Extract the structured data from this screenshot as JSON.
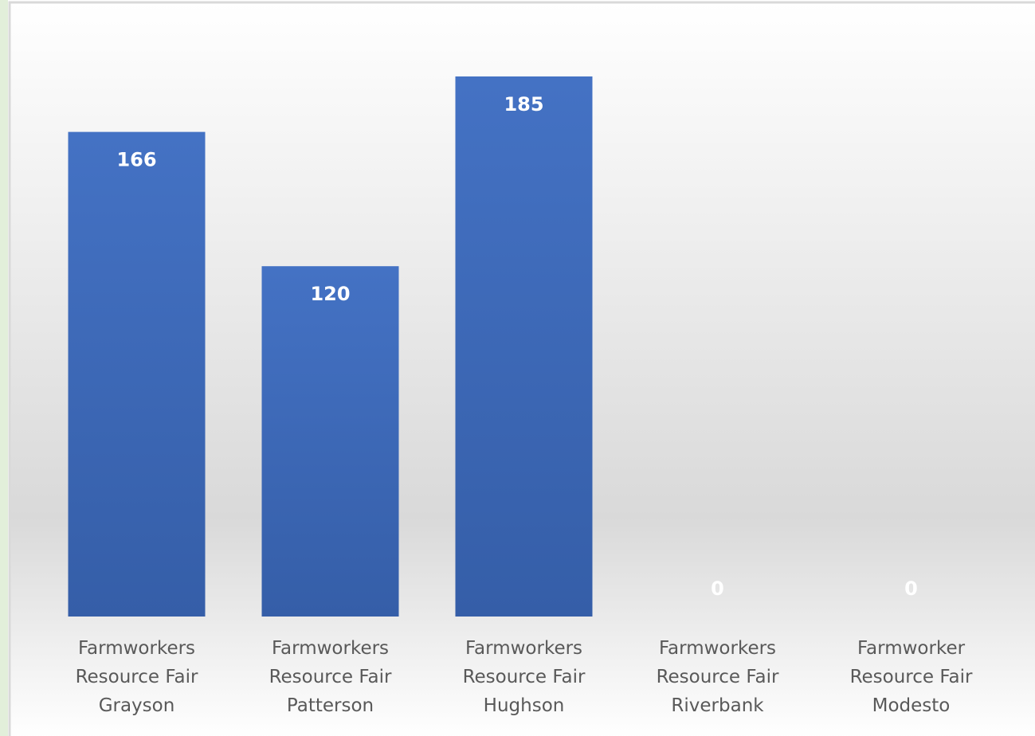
{
  "chart_data": {
    "type": "bar",
    "categories": [
      "Farmworkers Resource Fair Grayson",
      "Farmworkers Resource Fair Patterson",
      "Farmworkers Resource Fair Hughson",
      "Farmworkers Resource Fair Riverbank",
      "Farmworker Resource Fair Modesto"
    ],
    "values": [
      166,
      120,
      185,
      0,
      0
    ],
    "color": "#4472c4",
    "ylim": [
      0,
      200
    ]
  }
}
